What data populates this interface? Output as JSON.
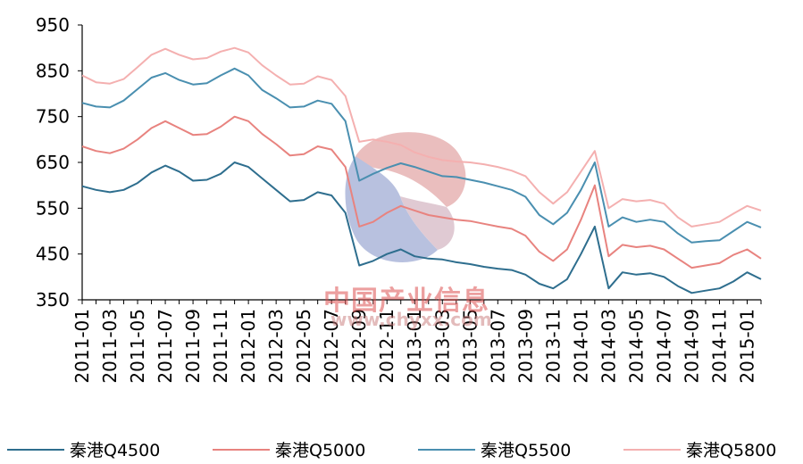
{
  "watermark": {
    "text_cn": "中国产业信息",
    "text_url": "www.chyxx.com"
  },
  "colors": {
    "q4500": "#2e6e8e",
    "q5000": "#e8837f",
    "q5500": "#4a8fb0",
    "q5800": "#f4b0b0"
  },
  "chart_data": {
    "type": "line",
    "ylim": [
      350,
      950
    ],
    "yticks": [
      350,
      450,
      550,
      650,
      750,
      850,
      950
    ],
    "x_tick_labels": [
      "2011-01",
      "2011-03",
      "2011-05",
      "2011-07",
      "2011-09",
      "2011-11",
      "2012-01",
      "2012-03",
      "2012-05",
      "2012-07",
      "2012-09",
      "2012-11",
      "2013-01",
      "2013-03",
      "2013-05",
      "2013-07",
      "2013-09",
      "2013-11",
      "2014-01",
      "2014-03",
      "2014-05",
      "2014-07",
      "2014-09",
      "2014-11",
      "2015-01"
    ],
    "x": [
      "2011-01",
      "2011-02",
      "2011-03",
      "2011-04",
      "2011-05",
      "2011-06",
      "2011-07",
      "2011-08",
      "2011-09",
      "2011-10",
      "2011-11",
      "2011-12",
      "2012-01",
      "2012-02",
      "2012-03",
      "2012-04",
      "2012-05",
      "2012-06",
      "2012-07",
      "2012-08",
      "2012-09",
      "2012-10",
      "2012-11",
      "2012-12",
      "2013-01",
      "2013-02",
      "2013-03",
      "2013-04",
      "2013-05",
      "2013-06",
      "2013-07",
      "2013-08",
      "2013-09",
      "2013-10",
      "2013-11",
      "2013-12",
      "2014-01",
      "2014-02",
      "2014-03",
      "2014-04",
      "2014-05",
      "2014-06",
      "2014-07",
      "2014-08",
      "2014-09",
      "2014-10",
      "2014-11",
      "2014-12",
      "2015-01",
      "2015-02"
    ],
    "series": [
      {
        "name": "秦港Q4500",
        "color_key": "q4500",
        "values": [
          598,
          590,
          585,
          590,
          605,
          628,
          643,
          630,
          610,
          612,
          625,
          650,
          640,
          615,
          590,
          565,
          568,
          585,
          578,
          540,
          425,
          435,
          450,
          460,
          445,
          440,
          438,
          432,
          428,
          422,
          418,
          415,
          405,
          385,
          375,
          395,
          450,
          510,
          375,
          410,
          405,
          408,
          400,
          380,
          365,
          370,
          375,
          390,
          410,
          395
        ]
      },
      {
        "name": "秦港Q5000",
        "color_key": "q5000",
        "values": [
          685,
          675,
          670,
          680,
          700,
          725,
          740,
          725,
          710,
          712,
          728,
          750,
          740,
          712,
          690,
          665,
          668,
          685,
          678,
          640,
          510,
          520,
          540,
          555,
          545,
          535,
          530,
          525,
          522,
          516,
          510,
          505,
          490,
          455,
          435,
          460,
          525,
          600,
          445,
          470,
          465,
          468,
          460,
          440,
          420,
          425,
          430,
          448,
          460,
          440
        ]
      },
      {
        "name": "秦港Q5500",
        "color_key": "q5500",
        "values": [
          780,
          772,
          770,
          785,
          810,
          835,
          845,
          830,
          820,
          823,
          840,
          855,
          840,
          808,
          790,
          770,
          772,
          785,
          778,
          740,
          610,
          625,
          638,
          648,
          640,
          630,
          620,
          618,
          612,
          606,
          598,
          590,
          575,
          535,
          515,
          540,
          590,
          650,
          510,
          530,
          520,
          525,
          520,
          495,
          475,
          478,
          480,
          500,
          520,
          508
        ]
      },
      {
        "name": "秦港Q5800",
        "color_key": "q5800",
        "values": [
          840,
          825,
          822,
          832,
          858,
          885,
          898,
          885,
          875,
          878,
          892,
          900,
          890,
          862,
          840,
          820,
          822,
          838,
          830,
          795,
          695,
          700,
          695,
          688,
          672,
          662,
          655,
          652,
          650,
          646,
          640,
          632,
          620,
          585,
          560,
          585,
          630,
          675,
          550,
          570,
          565,
          568,
          560,
          530,
          510,
          515,
          520,
          538,
          555,
          545
        ]
      }
    ]
  }
}
